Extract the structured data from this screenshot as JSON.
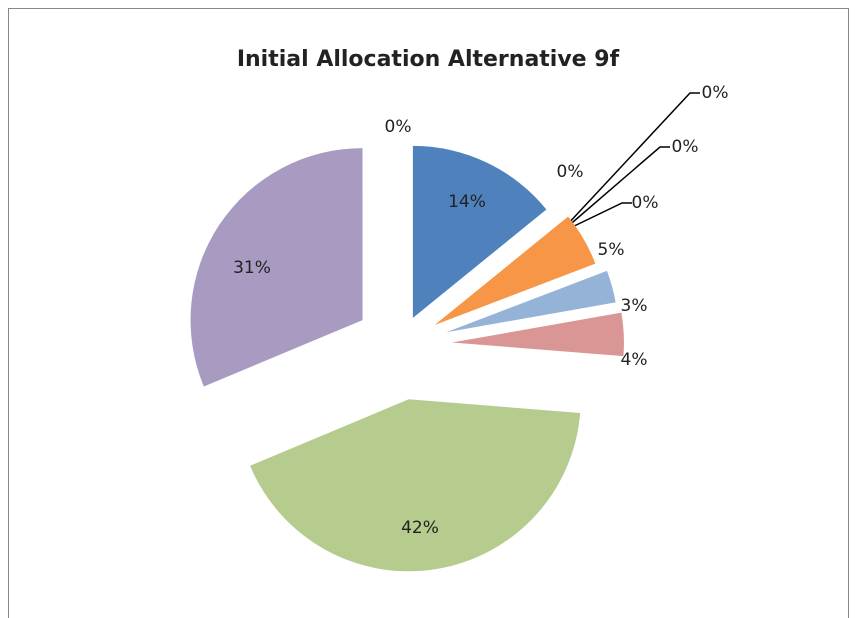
{
  "chart_data": {
    "type": "pie",
    "title": "Initial Allocation Alternative 9f",
    "values": [
      14,
      0,
      0,
      0,
      0,
      5,
      3,
      4,
      42,
      31,
      0
    ],
    "value_labels": [
      "14%",
      "0%",
      "0%",
      "0%",
      "0%",
      "5%",
      "3%",
      "4%",
      "42%",
      "31%",
      "0%"
    ],
    "colors": [
      "#4f81bd",
      "#c0504d",
      "#9bbb59",
      "#8064a2",
      "#4bacc6",
      "#f79646",
      "#95b3d7",
      "#d99694",
      "#b5cc8e",
      "#a99ac2",
      "#92cddc"
    ]
  }
}
